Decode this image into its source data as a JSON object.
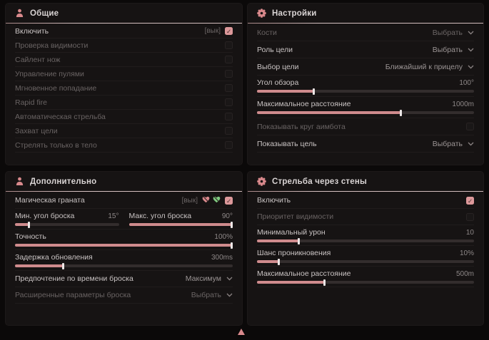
{
  "colors": {
    "accent": "#d9898c",
    "slider_fill": "#cf8b8d",
    "checkbox_checked": "#dc989a",
    "panel_bg": "#161313",
    "page_bg": "#0b0909",
    "header_line": "#ecd6d6",
    "green_icon": "#7fc97f"
  },
  "panels": [
    {
      "title": "Общие",
      "icon": "person-icon",
      "rows": [
        {
          "type": "checkbox",
          "label": "Включить",
          "state_label": "[вык]",
          "checked": true,
          "bright": true
        },
        {
          "type": "checkbox",
          "label": "Проверка видимости",
          "checked": false,
          "bright": false
        },
        {
          "type": "checkbox",
          "label": "Сайлент нож",
          "checked": false,
          "bright": false
        },
        {
          "type": "checkbox",
          "label": "Управление пулями",
          "checked": false,
          "bright": false
        },
        {
          "type": "checkbox",
          "label": "Мгновенное попадание",
          "checked": false,
          "bright": false
        },
        {
          "type": "checkbox",
          "label": "Rapid fire",
          "checked": false,
          "bright": false
        },
        {
          "type": "checkbox",
          "label": "Автоматическая стрельба",
          "checked": false,
          "bright": false
        },
        {
          "type": "checkbox",
          "label": "Захват цели",
          "checked": false,
          "bright": false
        },
        {
          "type": "checkbox",
          "label": "Стрелять только в тело",
          "checked": false,
          "bright": false
        }
      ]
    },
    {
      "title": "Настройки",
      "icon": "gear-icon",
      "rows": [
        {
          "type": "dropdown",
          "label": "Кости",
          "value": "Выбрать",
          "bright": false
        },
        {
          "type": "dropdown",
          "label": "Роль цели",
          "value": "Выбрать",
          "bright": true
        },
        {
          "type": "dropdown",
          "label": "Выбор цели",
          "value": "Ближайший к прицелу",
          "bright": true
        },
        {
          "type": "slider",
          "label": "Угол обзора",
          "value": "100°",
          "fill": 26
        },
        {
          "type": "slider",
          "label": "Максимальное расстояние",
          "value": "1000m",
          "fill": 66
        },
        {
          "type": "checkbox",
          "label": "Показывать круг аимбота",
          "checked": false,
          "bright": false
        },
        {
          "type": "dropdown",
          "label": "Показывать цель",
          "value": "Выбрать",
          "bright": true
        }
      ]
    },
    {
      "title": "Дополнительно",
      "icon": "person-icon",
      "rows": [
        {
          "type": "grenade",
          "label": "Магическая граната",
          "state_label": "[вык]",
          "icons": [
            "broken-heart-icon",
            "green-heart-icon"
          ],
          "checked": true,
          "bright": true
        },
        {
          "type": "slider_pair",
          "sliders": [
            {
              "label": "Мин. угол броска",
              "value": "15°",
              "fill": 13
            },
            {
              "label": "Макс. угол броска",
              "value": "90°",
              "fill": 100
            }
          ]
        },
        {
          "type": "slider",
          "label": "Точность",
          "value": "100%",
          "fill": 100
        },
        {
          "type": "slider",
          "label": "Задержка обновления",
          "value": "300ms",
          "fill": 22
        },
        {
          "type": "dropdown",
          "label": "Предпочтение по времени броска",
          "value": "Максимум",
          "bright": true
        },
        {
          "type": "dropdown",
          "label": "Расширенные параметры броска",
          "value": "Выбрать",
          "bright": false
        }
      ]
    },
    {
      "title": "Стрельба через стены",
      "icon": "gear-icon",
      "rows": [
        {
          "type": "checkbox",
          "label": "Включить",
          "checked": true,
          "bright": true
        },
        {
          "type": "checkbox",
          "label": "Приоритет видимости",
          "checked": false,
          "bright": false
        },
        {
          "type": "slider",
          "label": "Минимальный урон",
          "value": "10",
          "fill": 19
        },
        {
          "type": "slider",
          "label": "Шанс проникновения",
          "value": "10%",
          "fill": 10
        },
        {
          "type": "slider",
          "label": "Максимальное расстояние",
          "value": "500m",
          "fill": 31
        }
      ]
    }
  ],
  "cursor": {
    "icon": "cursor-icon"
  }
}
